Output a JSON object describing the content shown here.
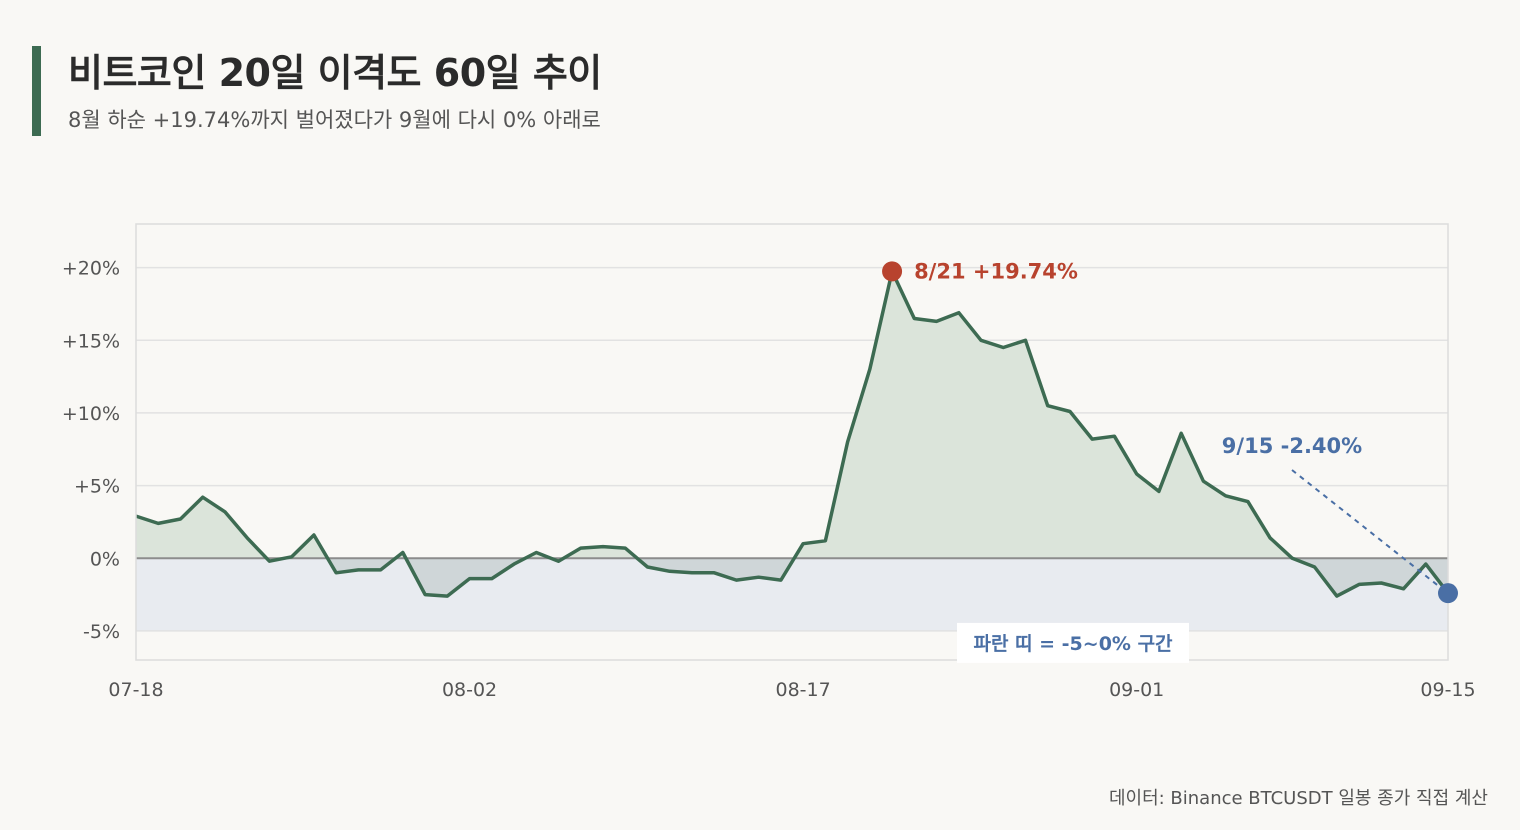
{
  "header": {
    "title": "비트코인 20일 이격도 60일 추이",
    "subtitle": "8월 하순 +19.74%까지 벌어졌다가 9월에 다시 0% 아래로"
  },
  "source": "데이터: Binance BTCUSDT 일봉 종가 직접 계산",
  "colors": {
    "line": "#3d6b52",
    "positive_fill": "#dbe4da",
    "negative_fill": "#cfd6d8",
    "band": "#e8ebf0",
    "peak": "#b8432e",
    "end": "#4a6fa5",
    "zero_line": "#8c8c8c",
    "grid": "#e2e2e2"
  },
  "chart_data": {
    "type": "area",
    "x_start": "07-18",
    "x_ticks": [
      "07-18",
      "08-02",
      "08-17",
      "09-01",
      "09-15"
    ],
    "y_ticks": [
      "+20%",
      "+15%",
      "+10%",
      "+5%",
      "0%",
      "-5%"
    ],
    "y_tick_values": [
      20,
      15,
      10,
      5,
      0,
      -5
    ],
    "ylim": [
      -7,
      23
    ],
    "values": [
      2.9,
      2.4,
      2.7,
      4.2,
      3.2,
      1.4,
      -0.2,
      0.1,
      1.6,
      -1.0,
      -0.8,
      -0.8,
      0.4,
      -2.5,
      -2.6,
      -1.4,
      -1.4,
      -0.4,
      0.4,
      -0.2,
      0.7,
      0.8,
      0.7,
      -0.6,
      -0.9,
      -1.0,
      -1.0,
      -1.5,
      -1.3,
      -1.5,
      1.0,
      1.2,
      8.0,
      13.0,
      19.74,
      16.5,
      16.3,
      16.9,
      15.0,
      14.5,
      15.0,
      10.5,
      10.1,
      8.2,
      8.4,
      5.8,
      4.6,
      8.6,
      5.3,
      4.3,
      3.9,
      1.4,
      0.0,
      -0.6,
      -2.6,
      -1.8,
      -1.7,
      -2.1,
      -0.4,
      -2.4
    ],
    "band": {
      "from": -5,
      "to": 0,
      "label": "파란 띠 = -5~0% 구간"
    },
    "annotations": [
      {
        "x": "08-21",
        "y": 19.74,
        "label": "8/21 +19.74%"
      },
      {
        "x": "09-15",
        "y": -2.4,
        "label": "9/15 -2.40%"
      }
    ],
    "grid": true
  }
}
